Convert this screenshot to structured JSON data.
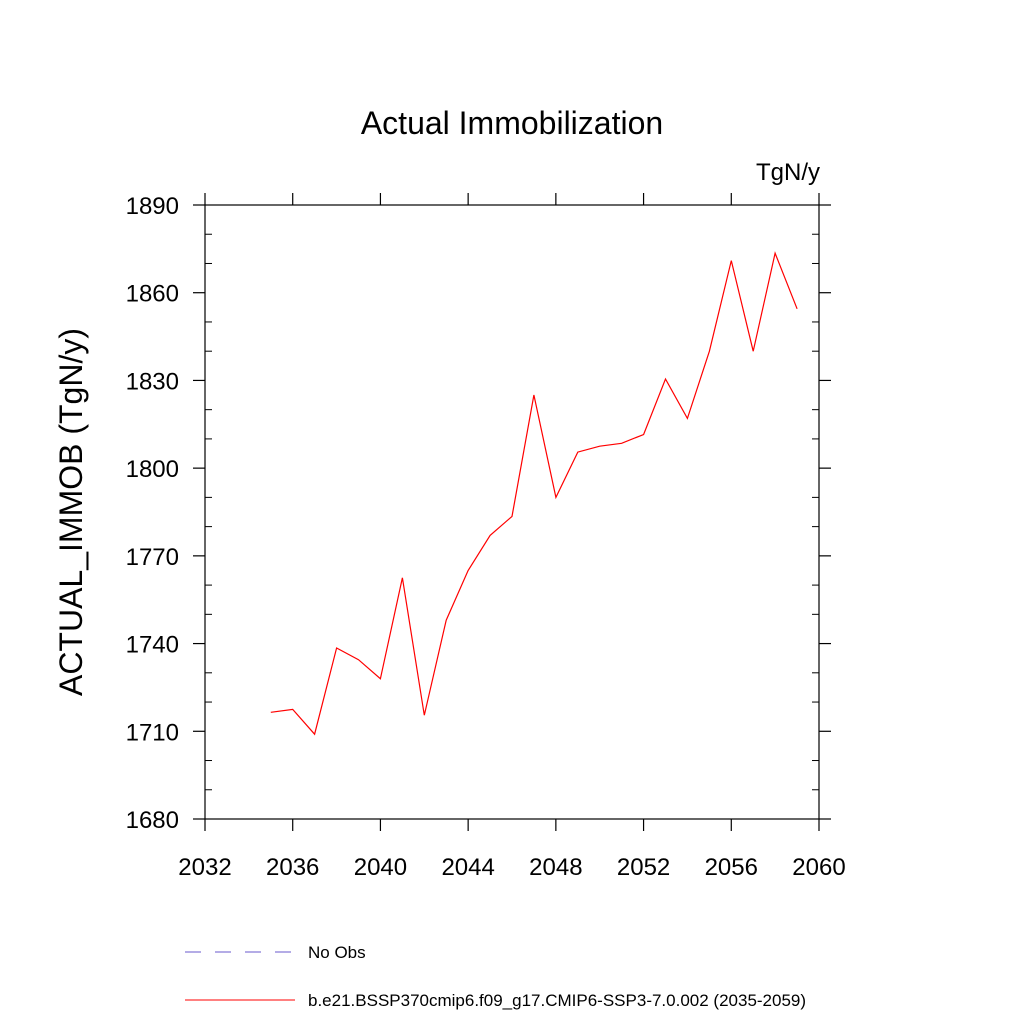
{
  "chart_data": {
    "type": "line",
    "title": "Actual Immobilization",
    "units_label": "TgN/y",
    "ylabel": "ACTUAL_IMMOB  (TgN/y)",
    "xlabel": "",
    "xlim": [
      2032,
      2060
    ],
    "ylim": [
      1680,
      1890
    ],
    "x_ticks": [
      2032,
      2036,
      2040,
      2044,
      2048,
      2052,
      2056,
      2060
    ],
    "y_ticks": [
      1680,
      1710,
      1740,
      1770,
      1800,
      1830,
      1860,
      1890
    ],
    "grid": false,
    "legend_position": "bottom",
    "series": [
      {
        "name": "b.e21.BSSP370cmip6.f09_g17.CMIP6-SSP3-7.0.002 (2035-2059)",
        "color": "#ff0000",
        "style": "solid",
        "x": [
          2035,
          2036,
          2037,
          2038,
          2039,
          2040,
          2041,
          2042,
          2043,
          2044,
          2045,
          2046,
          2047,
          2048,
          2049,
          2050,
          2051,
          2052,
          2053,
          2054,
          2055,
          2056,
          2057,
          2058,
          2059
        ],
        "y": [
          1716.5,
          1717.5,
          1709,
          1738.5,
          1734.5,
          1728,
          1762.5,
          1715.5,
          1748,
          1765,
          1777,
          1783.5,
          1825,
          1790,
          1805.5,
          1807.5,
          1808.5,
          1811.5,
          1830.5,
          1817,
          1840,
          1871,
          1840,
          1873.5,
          1854.5
        ]
      }
    ],
    "legend": [
      {
        "label": "No Obs",
        "color": "#6a5acd",
        "style": "dashed"
      },
      {
        "label": "b.e21.BSSP370cmip6.f09_g17.CMIP6-SSP3-7.0.002 (2035-2059)",
        "color": "#ff0000",
        "style": "solid"
      }
    ]
  }
}
